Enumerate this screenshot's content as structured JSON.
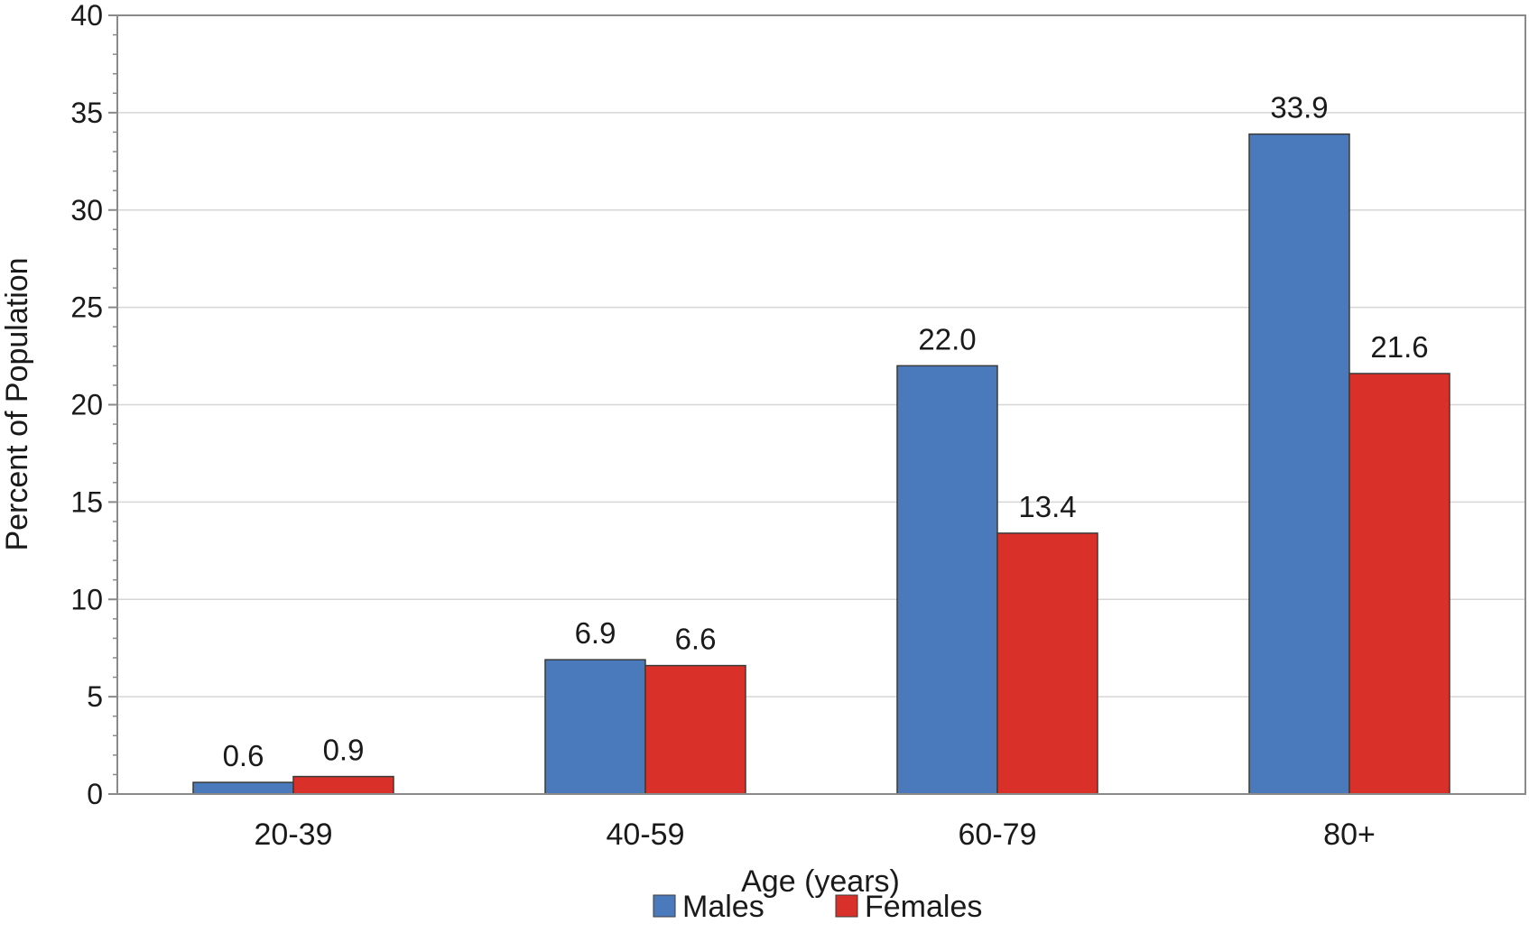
{
  "chart_data": {
    "type": "bar",
    "title": "",
    "xlabel": "Age (years)",
    "ylabel": "Percent of Population",
    "ylim": [
      0,
      40
    ],
    "yticks": [
      0,
      5,
      10,
      15,
      20,
      25,
      30,
      35,
      40
    ],
    "grid": true,
    "legend_position": "bottom-center",
    "categories": [
      "20-39",
      "40-59",
      "60-79",
      "80+"
    ],
    "series": [
      {
        "name": "Males",
        "color": "#4a7abc",
        "values": [
          0.6,
          6.9,
          22.0,
          33.9
        ],
        "labels": [
          "0.6",
          "6.9",
          "22.0",
          "33.9"
        ]
      },
      {
        "name": "Females",
        "color": "#d93129",
        "values": [
          0.9,
          6.6,
          13.4,
          21.6
        ],
        "labels": [
          "0.9",
          "6.6",
          "13.4",
          "21.6"
        ]
      }
    ]
  }
}
